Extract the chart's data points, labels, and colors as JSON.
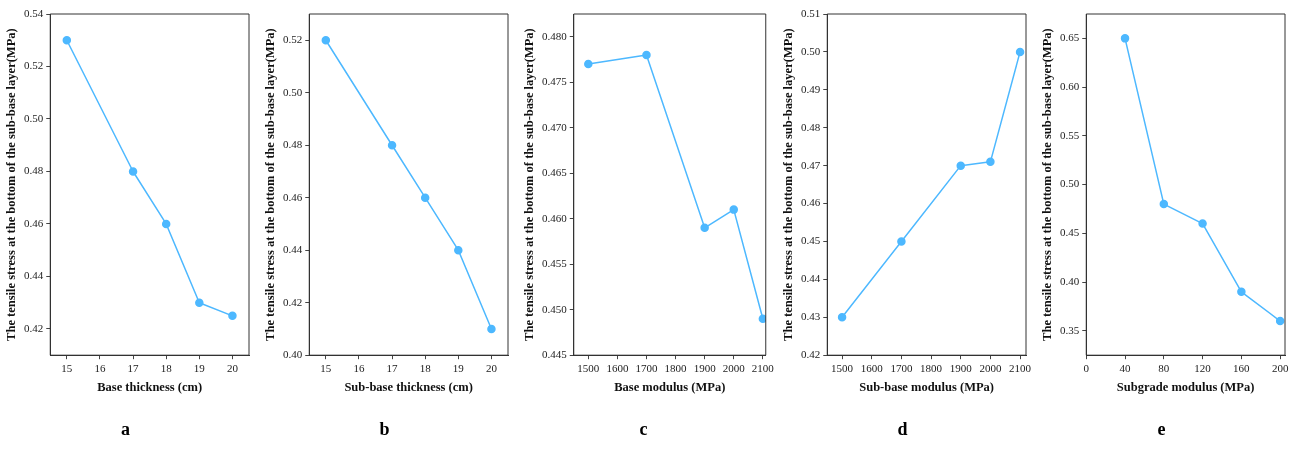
{
  "chart_data": [
    {
      "type": "line",
      "title": "a",
      "xlabel": "Base thickness (cm)",
      "ylabel": "The tensile stress at the bottom of the sub-base layer(MPa)",
      "x": [
        15,
        17,
        18,
        19,
        20
      ],
      "series": [
        {
          "color": "#4db8ff",
          "values": [
            0.53,
            0.48,
            0.46,
            0.43,
            0.425
          ]
        }
      ],
      "xlim": [
        14.5,
        20.5
      ],
      "xticks": [
        15,
        16,
        17,
        18,
        19,
        20
      ],
      "ylim": [
        0.41,
        0.54
      ],
      "yticks": [
        0.42,
        0.44,
        0.46,
        0.48,
        {
          "value": 0.5,
          "label": "0.50"
        },
        0.52,
        0.54
      ],
      "marker": "circle",
      "grid": false,
      "legend": false
    },
    {
      "type": "line",
      "title": "b",
      "xlabel": "Sub-base thickness (cm)",
      "ylabel": "The tensile stress at the bottom of the sub-base layer(MPa)",
      "x": [
        15,
        17,
        18,
        19,
        20
      ],
      "series": [
        {
          "color": "#4db8ff",
          "values": [
            0.52,
            0.48,
            0.46,
            0.44,
            0.41
          ]
        }
      ],
      "xlim": [
        14.5,
        20.5
      ],
      "xticks": [
        15,
        16,
        17,
        18,
        19,
        20
      ],
      "ylim": [
        0.4,
        0.53
      ],
      "yticks": [
        {
          "value": 0.4,
          "label": "0.40"
        },
        0.42,
        0.44,
        0.46,
        0.48,
        {
          "value": 0.5,
          "label": "0.50"
        },
        0.52
      ],
      "marker": "circle",
      "grid": false,
      "legend": false
    },
    {
      "type": "line",
      "title": "c",
      "xlabel": "Base modulus (MPa)",
      "ylabel": "The tensile stress at the bottom of the sub-base layer(MPa)",
      "x": [
        1500,
        1700,
        1900,
        2000,
        2100
      ],
      "series": [
        {
          "color": "#4db8ff",
          "values": [
            0.477,
            0.478,
            0.459,
            0.461,
            0.449
          ]
        }
      ],
      "xlim": [
        1450,
        2110
      ],
      "xticks": [
        1500,
        1600,
        1700,
        1800,
        1900,
        2000,
        2100
      ],
      "ylim": [
        0.445,
        0.4825
      ],
      "yticks": [
        0.445,
        {
          "value": 0.45,
          "label": "0.450"
        },
        0.455,
        {
          "value": 0.46,
          "label": "0.460"
        },
        0.465,
        {
          "value": 0.47,
          "label": "0.470"
        },
        0.475,
        {
          "value": 0.48,
          "label": "0.480"
        }
      ],
      "marker": "circle",
      "grid": false,
      "legend": false
    },
    {
      "type": "line",
      "title": "d",
      "xlabel": "Sub-base modulus (MPa)",
      "ylabel": "The tensile stress at the bottom of the sub-base layer(MPa)",
      "x": [
        1500,
        1700,
        1900,
        2000,
        2100
      ],
      "series": [
        {
          "color": "#4db8ff",
          "values": [
            0.43,
            0.45,
            0.47,
            0.471,
            0.5
          ]
        }
      ],
      "xlim": [
        1450,
        2120
      ],
      "xticks": [
        1500,
        1600,
        1700,
        1800,
        1900,
        2000,
        2100
      ],
      "ylim": [
        0.42,
        0.51
      ],
      "yticks": [
        0.42,
        0.43,
        0.44,
        0.45,
        0.46,
        0.47,
        0.48,
        0.49,
        {
          "value": 0.5,
          "label": "0.50"
        },
        0.51
      ],
      "marker": "circle",
      "grid": false,
      "legend": false
    },
    {
      "type": "line",
      "title": "e",
      "xlabel": "Subgrade modulus (MPa)",
      "ylabel": "The tensile stress at the bottom of the sub-base layer(MPa)",
      "x": [
        40,
        80,
        120,
        160,
        200
      ],
      "series": [
        {
          "color": "#4db8ff",
          "values": [
            0.65,
            0.48,
            0.46,
            0.39,
            0.36
          ]
        }
      ],
      "xlim": [
        0,
        205
      ],
      "xticks": [
        0,
        40,
        80,
        120,
        160,
        200
      ],
      "ylim": [
        0.325,
        0.675
      ],
      "yticks": [
        0.35,
        {
          "value": 0.4,
          "label": "0.40"
        },
        0.45,
        {
          "value": 0.5,
          "label": "0.50"
        },
        0.55,
        {
          "value": 0.6,
          "label": "0.60"
        },
        0.65
      ],
      "marker": "circle",
      "grid": false,
      "legend": false
    }
  ]
}
